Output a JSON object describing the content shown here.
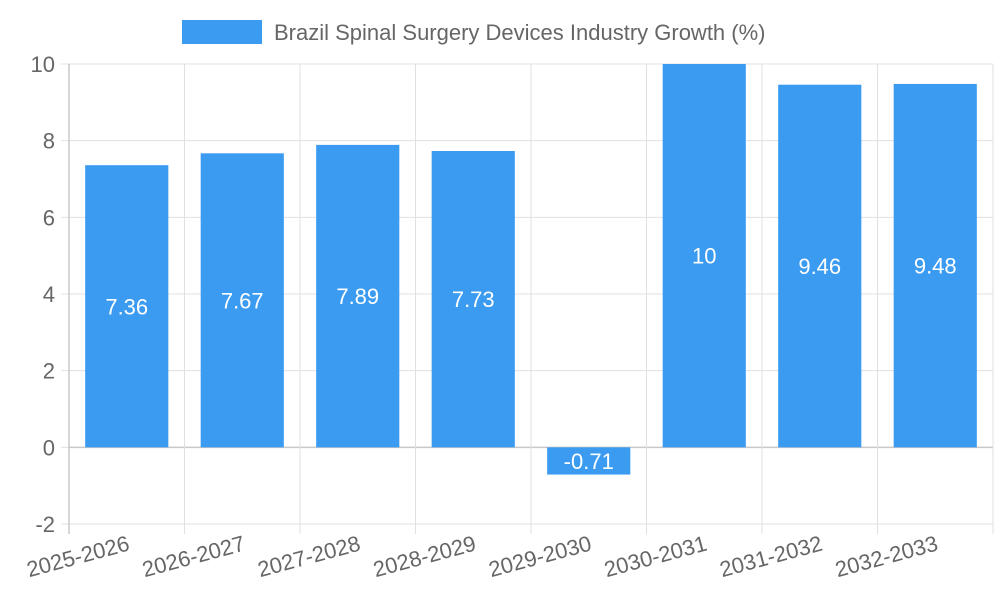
{
  "chart_data": {
    "type": "bar",
    "title": "",
    "legend": {
      "label": "Brazil Spinal Surgery Devices Industry Growth (%)",
      "color": "#3a9bf0",
      "position": "top"
    },
    "categories": [
      "2025-2026",
      "2026-2027",
      "2027-2028",
      "2028-2029",
      "2029-2030",
      "2030-2031",
      "2031-2032",
      "2032-2033"
    ],
    "series": [
      {
        "name": "Brazil Spinal Surgery Devices Industry Growth (%)",
        "values": [
          7.36,
          7.67,
          7.89,
          7.73,
          -0.71,
          10,
          9.46,
          9.48
        ],
        "color": "#3a9bf0"
      }
    ],
    "data_labels": [
      "7.36",
      "7.67",
      "7.89",
      "7.73",
      "-0.71",
      "10",
      "9.46",
      "9.48"
    ],
    "ylim": [
      -2,
      10
    ],
    "yticks": [
      -2,
      0,
      2,
      4,
      6,
      8,
      10
    ],
    "xlabel": "",
    "ylabel": "",
    "grid": true
  }
}
